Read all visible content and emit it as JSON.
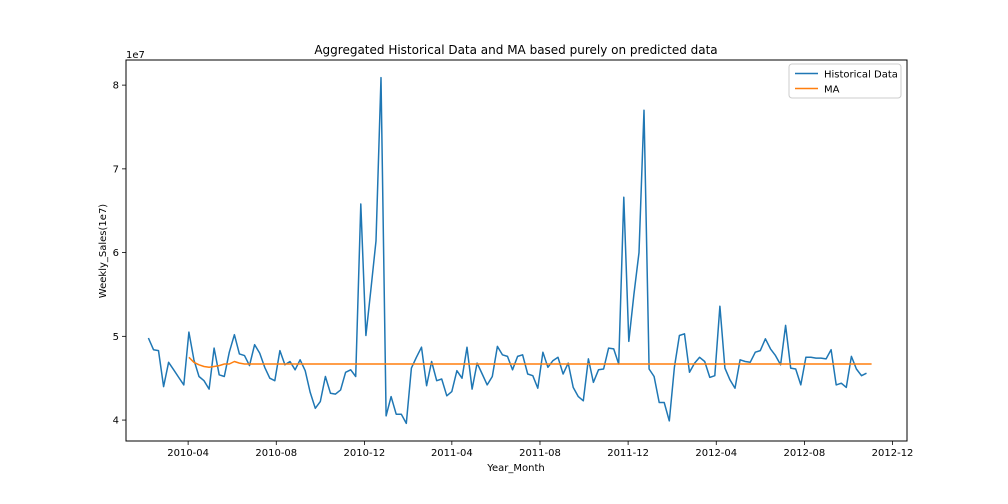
{
  "chart_data": {
    "type": "line",
    "title": "Aggregated Historical Data and MA based purely on predicted data",
    "xlabel": "Year_Month",
    "ylabel": "Weekly_Sales(1e7)",
    "y_offset_label": "1e7",
    "xlim": [
      "2010-01-05",
      "2012-12-21"
    ],
    "ylim": [
      3.75,
      8.3
    ],
    "y_ticks": [
      4,
      5,
      6,
      7,
      8
    ],
    "x_ticks": [
      {
        "date": "2010-04-01",
        "label": "2010-04"
      },
      {
        "date": "2010-08-01",
        "label": "2010-08"
      },
      {
        "date": "2010-12-01",
        "label": "2010-12"
      },
      {
        "date": "2011-04-01",
        "label": "2011-04"
      },
      {
        "date": "2011-08-01",
        "label": "2011-08"
      },
      {
        "date": "2011-12-01",
        "label": "2011-12"
      },
      {
        "date": "2012-04-01",
        "label": "2012-04"
      },
      {
        "date": "2012-08-01",
        "label": "2012-08"
      },
      {
        "date": "2012-12-01",
        "label": "2012-12"
      }
    ],
    "grid": false,
    "legend_position": "top-right",
    "series": [
      {
        "name": "Historical Data",
        "color": "#1f77b4",
        "x": [
          "2010-02-05",
          "2010-02-12",
          "2010-02-19",
          "2010-02-26",
          "2010-03-05",
          "2010-03-12",
          "2010-03-19",
          "2010-03-26",
          "2010-04-02",
          "2010-04-09",
          "2010-04-16",
          "2010-04-23",
          "2010-04-30",
          "2010-05-07",
          "2010-05-14",
          "2010-05-21",
          "2010-05-28",
          "2010-06-04",
          "2010-06-11",
          "2010-06-18",
          "2010-06-25",
          "2010-07-02",
          "2010-07-09",
          "2010-07-16",
          "2010-07-23",
          "2010-07-30",
          "2010-08-06",
          "2010-08-13",
          "2010-08-20",
          "2010-08-27",
          "2010-09-03",
          "2010-09-10",
          "2010-09-17",
          "2010-09-24",
          "2010-10-01",
          "2010-10-08",
          "2010-10-15",
          "2010-10-22",
          "2010-10-29",
          "2010-11-05",
          "2010-11-12",
          "2010-11-19",
          "2010-11-26",
          "2010-12-03",
          "2010-12-10",
          "2010-12-17",
          "2010-12-24",
          "2010-12-31",
          "2011-01-07",
          "2011-01-14",
          "2011-01-21",
          "2011-01-28",
          "2011-02-04",
          "2011-02-11",
          "2011-02-18",
          "2011-02-25",
          "2011-03-04",
          "2011-03-11",
          "2011-03-18",
          "2011-03-25",
          "2011-04-01",
          "2011-04-08",
          "2011-04-15",
          "2011-04-22",
          "2011-04-29",
          "2011-05-06",
          "2011-05-13",
          "2011-05-20",
          "2011-05-27",
          "2011-06-03",
          "2011-06-10",
          "2011-06-17",
          "2011-06-24",
          "2011-07-01",
          "2011-07-08",
          "2011-07-15",
          "2011-07-22",
          "2011-07-29",
          "2011-08-05",
          "2011-08-12",
          "2011-08-19",
          "2011-08-26",
          "2011-09-02",
          "2011-09-09",
          "2011-09-16",
          "2011-09-23",
          "2011-09-30",
          "2011-10-07",
          "2011-10-14",
          "2011-10-21",
          "2011-10-28",
          "2011-11-04",
          "2011-11-11",
          "2011-11-18",
          "2011-11-25",
          "2011-12-02",
          "2011-12-09",
          "2011-12-16",
          "2011-12-23",
          "2011-12-30",
          "2012-01-06",
          "2012-01-13",
          "2012-01-20",
          "2012-01-27",
          "2012-02-03",
          "2012-02-10",
          "2012-02-17",
          "2012-02-24",
          "2012-03-02",
          "2012-03-09",
          "2012-03-16",
          "2012-03-23",
          "2012-03-30",
          "2012-04-06",
          "2012-04-13",
          "2012-04-20",
          "2012-04-27",
          "2012-05-04",
          "2012-05-11",
          "2012-05-18",
          "2012-05-25",
          "2012-06-01",
          "2012-06-08",
          "2012-06-15",
          "2012-06-22",
          "2012-06-29",
          "2012-07-06",
          "2012-07-13",
          "2012-07-20",
          "2012-07-27",
          "2012-08-03",
          "2012-08-10",
          "2012-08-17",
          "2012-08-24",
          "2012-08-31",
          "2012-09-07",
          "2012-09-14",
          "2012-09-21",
          "2012-09-28",
          "2012-10-05",
          "2012-10-12",
          "2012-10-19",
          "2012-10-26"
        ],
        "y": [
          4.98,
          4.84,
          4.83,
          4.4,
          4.69,
          4.6,
          4.51,
          4.42,
          5.05,
          4.72,
          4.52,
          4.47,
          4.37,
          4.86,
          4.54,
          4.52,
          4.81,
          5.02,
          4.79,
          4.77,
          4.65,
          4.9,
          4.8,
          4.63,
          4.5,
          4.47,
          4.83,
          4.66,
          4.7,
          4.6,
          4.72,
          4.59,
          4.33,
          4.14,
          4.22,
          4.52,
          4.32,
          4.31,
          4.36,
          4.57,
          4.6,
          4.52,
          6.58,
          5.01,
          5.56,
          6.14,
          8.09,
          4.05,
          4.28,
          4.07,
          4.07,
          3.96,
          4.62,
          4.75,
          4.87,
          4.41,
          4.7,
          4.47,
          4.49,
          4.29,
          4.34,
          4.59,
          4.5,
          4.87,
          4.37,
          4.68,
          4.55,
          4.42,
          4.52,
          4.88,
          4.78,
          4.76,
          4.6,
          4.76,
          4.78,
          4.55,
          4.53,
          4.38,
          4.81,
          4.63,
          4.71,
          4.75,
          4.55,
          4.68,
          4.39,
          4.28,
          4.23,
          4.73,
          4.45,
          4.6,
          4.61,
          4.86,
          4.85,
          4.67,
          6.66,
          4.94,
          5.5,
          6.0,
          7.7,
          4.61,
          4.52,
          4.21,
          4.21,
          3.99,
          4.63,
          5.01,
          5.03,
          4.57,
          4.68,
          4.75,
          4.7,
          4.51,
          4.53,
          5.36,
          4.62,
          4.48,
          4.38,
          4.72,
          4.7,
          4.69,
          4.81,
          4.83,
          4.97,
          4.85,
          4.77,
          4.66,
          5.13,
          4.62,
          4.61,
          4.42,
          4.75,
          4.75,
          4.74,
          4.74,
          4.73,
          4.84,
          4.42,
          4.44,
          4.39,
          4.76,
          4.61,
          4.53,
          4.56
        ]
      },
      {
        "name": "MA",
        "color": "#ff7f0e",
        "x": [
          "2010-04-02",
          "2010-04-09",
          "2010-04-16",
          "2010-04-23",
          "2010-04-30",
          "2010-05-07",
          "2010-05-14",
          "2010-05-21",
          "2010-05-28",
          "2010-06-04",
          "2010-06-11",
          "2010-06-18",
          "2010-06-25",
          "2010-07-02",
          "2012-10-26",
          "2012-11-02"
        ],
        "y": [
          4.75,
          4.69,
          4.66,
          4.64,
          4.63,
          4.64,
          4.65,
          4.67,
          4.67,
          4.7,
          4.68,
          4.67,
          4.67,
          4.67,
          4.67,
          4.67
        ]
      }
    ]
  }
}
